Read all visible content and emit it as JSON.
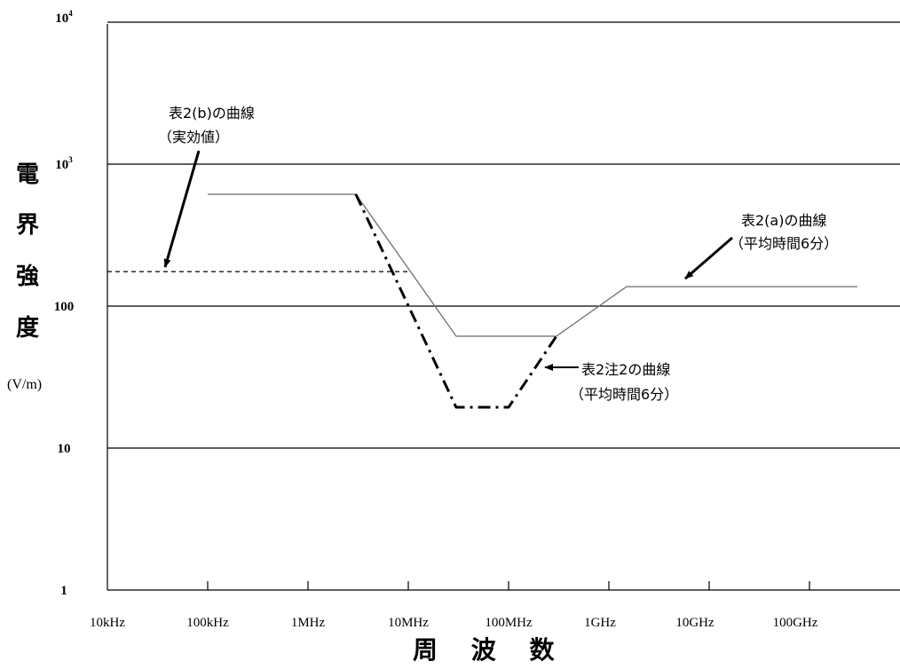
{
  "chart_data": {
    "type": "line",
    "title": "",
    "xlabel": "周 波 数",
    "ylabel": [
      "電",
      "界",
      "強",
      "度"
    ],
    "yunit": "(V/m)",
    "x_scale": "log",
    "y_scale": "log",
    "xlim": [
      "10kHz",
      "1THz"
    ],
    "ylim": [
      1,
      10000
    ],
    "x_ticks": [
      {
        "label": "10kHz",
        "hz": 10000
      },
      {
        "label": "100kHz",
        "hz": 100000
      },
      {
        "label": "1MHz",
        "hz": 1000000
      },
      {
        "label": "10MHz",
        "hz": 10000000
      },
      {
        "label": "100MHz",
        "hz": 100000000
      },
      {
        "label": "1GHz",
        "hz": 1000000000
      },
      {
        "label": "10GHz",
        "hz": 10000000000
      },
      {
        "label": "100GHz",
        "hz": 100000000000
      }
    ],
    "y_ticks": [
      {
        "value": 1,
        "label": "1",
        "base": "1",
        "exp": ""
      },
      {
        "value": 10,
        "label": "10",
        "base": "10",
        "exp": ""
      },
      {
        "value": 100,
        "label": "100",
        "base": "100",
        "exp": ""
      },
      {
        "value": 1000,
        "label": "10³",
        "base": "10",
        "exp": "3"
      },
      {
        "value": 10000,
        "label": "10⁴",
        "base": "10",
        "exp": "4"
      }
    ],
    "grid": {
      "horizontal": true,
      "vertical": false
    },
    "series": [
      {
        "name": "表2(a)の曲線（平均時間6分）",
        "style": "solid",
        "color": "#777777",
        "points": [
          {
            "hz": 100000,
            "v": 614
          },
          {
            "hz": 3000000,
            "v": 614
          },
          {
            "hz": 30000000,
            "v": 61.4
          },
          {
            "hz": 300000000,
            "v": 61.4
          },
          {
            "hz": 1500000000,
            "v": 137
          },
          {
            "hz": 300000000000,
            "v": 137
          }
        ]
      },
      {
        "name": "表2(b)の曲線（実効値）",
        "style": "dashed",
        "color": "#000000",
        "points": [
          {
            "hz": 10000,
            "v": 175
          },
          {
            "hz": 10000000,
            "v": 175
          }
        ]
      },
      {
        "name": "表2注2の曲線（平均時間6分）",
        "style": "dashdot",
        "color": "#000000",
        "points": [
          {
            "hz": 3000000,
            "v": 614
          },
          {
            "hz": 30000000,
            "v": 19.4
          },
          {
            "hz": 100000000,
            "v": 19.4
          },
          {
            "hz": 300000000,
            "v": 61.4
          }
        ]
      }
    ],
    "annotations": [
      {
        "lines": [
          "表2(b)の曲線",
          "（実効値）"
        ],
        "series": 1
      },
      {
        "lines": [
          "表2(a)の曲線",
          "（平均時間6分）"
        ],
        "series": 0
      },
      {
        "lines": [
          "表2注2の曲線",
          "（平均時間6分）"
        ],
        "series": 2
      }
    ]
  }
}
